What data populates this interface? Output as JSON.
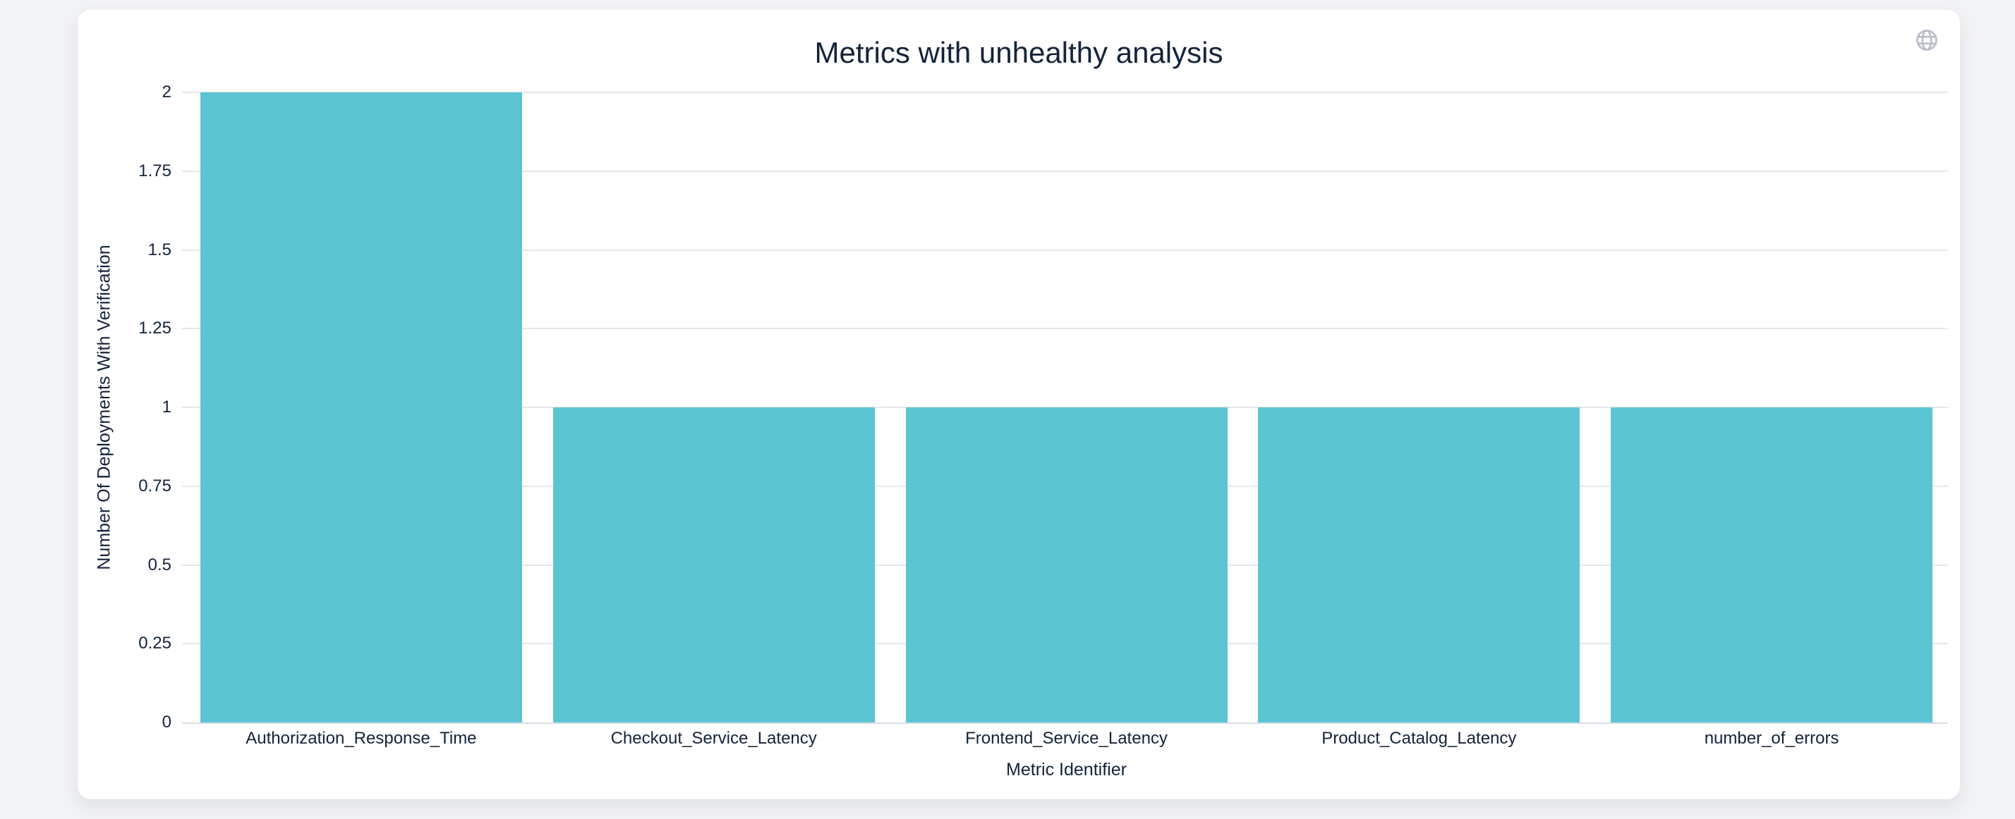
{
  "window": {
    "background": "#f2f3f5",
    "card_background": "#ffffff"
  },
  "toolbar": {
    "globe_icon": "globe-icon"
  },
  "chart_data": {
    "type": "bar",
    "title": "Metrics with unhealthy analysis",
    "xlabel": "Metric Identifier",
    "ylabel": "Number Of Deployments With Verification",
    "categories": [
      "Authorization_Response_Time",
      "Checkout_Service_Latency",
      "Frontend_Service_Latency",
      "Product_Catalog_Latency",
      "number_of_errors"
    ],
    "values": [
      2,
      1,
      1,
      1,
      1
    ],
    "ylim": [
      0,
      2
    ],
    "yticks": [
      0,
      0.25,
      0.5,
      0.75,
      1,
      1.25,
      1.5,
      1.75,
      2
    ],
    "grid": true,
    "legend_position": "none",
    "colors": {
      "bar": "#5bc4d2",
      "gridline": "#e7e7e9",
      "axis_line": "#d7dbe6",
      "text": "#13233b",
      "icon": "#b6bcc8"
    }
  }
}
